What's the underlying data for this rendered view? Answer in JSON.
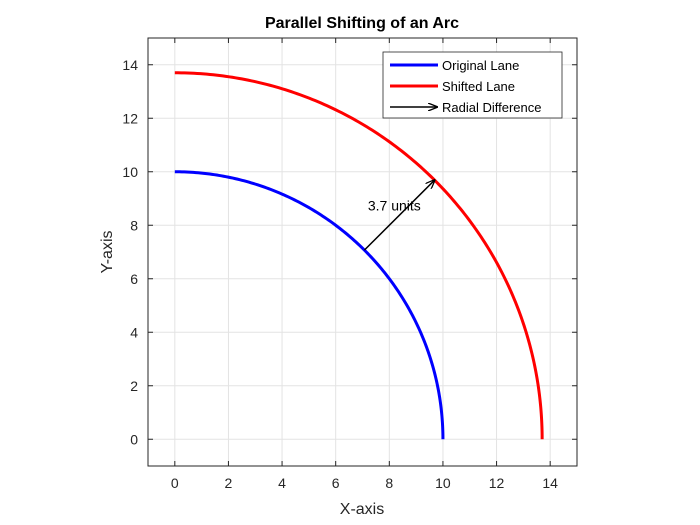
{
  "chart_data": {
    "type": "line",
    "title": "Parallel Shifting of an Arc",
    "xlabel": "X-axis",
    "ylabel": "Y-axis",
    "xlim": [
      -1,
      15
    ],
    "ylim": [
      -1,
      15
    ],
    "xticks": [
      0,
      2,
      4,
      6,
      8,
      10,
      12,
      14
    ],
    "yticks": [
      0,
      2,
      4,
      6,
      8,
      10,
      12,
      14
    ],
    "grid": true,
    "legend_position": "top-right",
    "series": [
      {
        "name": "Original Lane",
        "color": "#0000ff",
        "shape": "quarter-circle arc",
        "radius": 10,
        "center": [
          0,
          0
        ],
        "angle_range_deg": [
          0,
          90
        ]
      },
      {
        "name": "Shifted Lane",
        "color": "#ff0000",
        "shape": "quarter-circle arc",
        "radius": 13.7,
        "center": [
          0,
          0
        ],
        "angle_range_deg": [
          0,
          90
        ]
      }
    ],
    "arrow": {
      "name": "Radial Difference",
      "color": "#000000",
      "from": [
        7.07,
        7.07
      ],
      "to": [
        9.69,
        9.69
      ]
    },
    "annotation": {
      "text": "3.7 units",
      "x": 7.2,
      "y": 8.55
    }
  }
}
